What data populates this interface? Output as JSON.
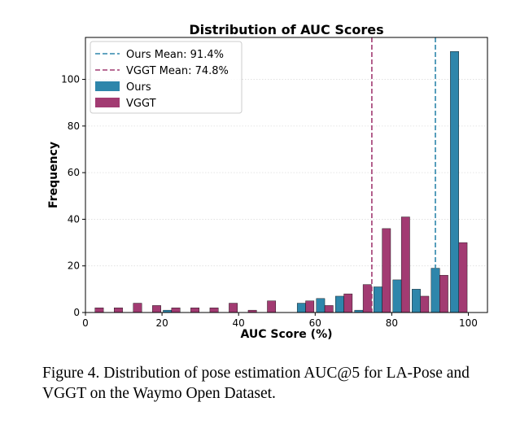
{
  "chart_data": {
    "type": "bar",
    "title": "Distribution of AUC Scores",
    "xlabel": "AUC Score (%)",
    "ylabel": "Frequency",
    "xlim": [
      0,
      105
    ],
    "ylim": [
      0,
      118
    ],
    "xticks": [
      0,
      20,
      40,
      60,
      80,
      100
    ],
    "yticks": [
      0,
      20,
      40,
      60,
      80,
      100
    ],
    "grid": "horizontal dotted",
    "legend_position": "top-left",
    "bin_centers": [
      2.5,
      7.5,
      12.5,
      17.5,
      22.5,
      27.5,
      32.5,
      37.5,
      42.5,
      47.5,
      52.5,
      57.5,
      62.5,
      67.5,
      72.5,
      77.5,
      82.5,
      87.5,
      92.5,
      97.5
    ],
    "series": [
      {
        "name": "Ours",
        "color": "#2e86ab",
        "values": [
          0,
          0,
          0,
          0,
          1,
          0,
          0,
          0,
          0,
          0,
          0,
          4,
          6,
          7,
          1,
          11,
          14,
          10,
          19,
          112
        ]
      },
      {
        "name": "VGGT",
        "color": "#a23b72",
        "values": [
          2,
          2,
          4,
          3,
          2,
          2,
          2,
          4,
          1,
          5,
          0,
          5,
          3,
          8,
          12,
          36,
          41,
          7,
          16,
          30
        ]
      }
    ],
    "mean_lines": [
      {
        "name": "Ours Mean: 91.4%",
        "value": 91.4,
        "color": "#2e86ab"
      },
      {
        "name": "VGGT Mean: 74.8%",
        "value": 74.8,
        "color": "#a23b72"
      }
    ]
  },
  "caption": "Figure 4.  Distribution of pose estimation AUC@5 for LA-Pose and VGGT on the Waymo Open Dataset."
}
